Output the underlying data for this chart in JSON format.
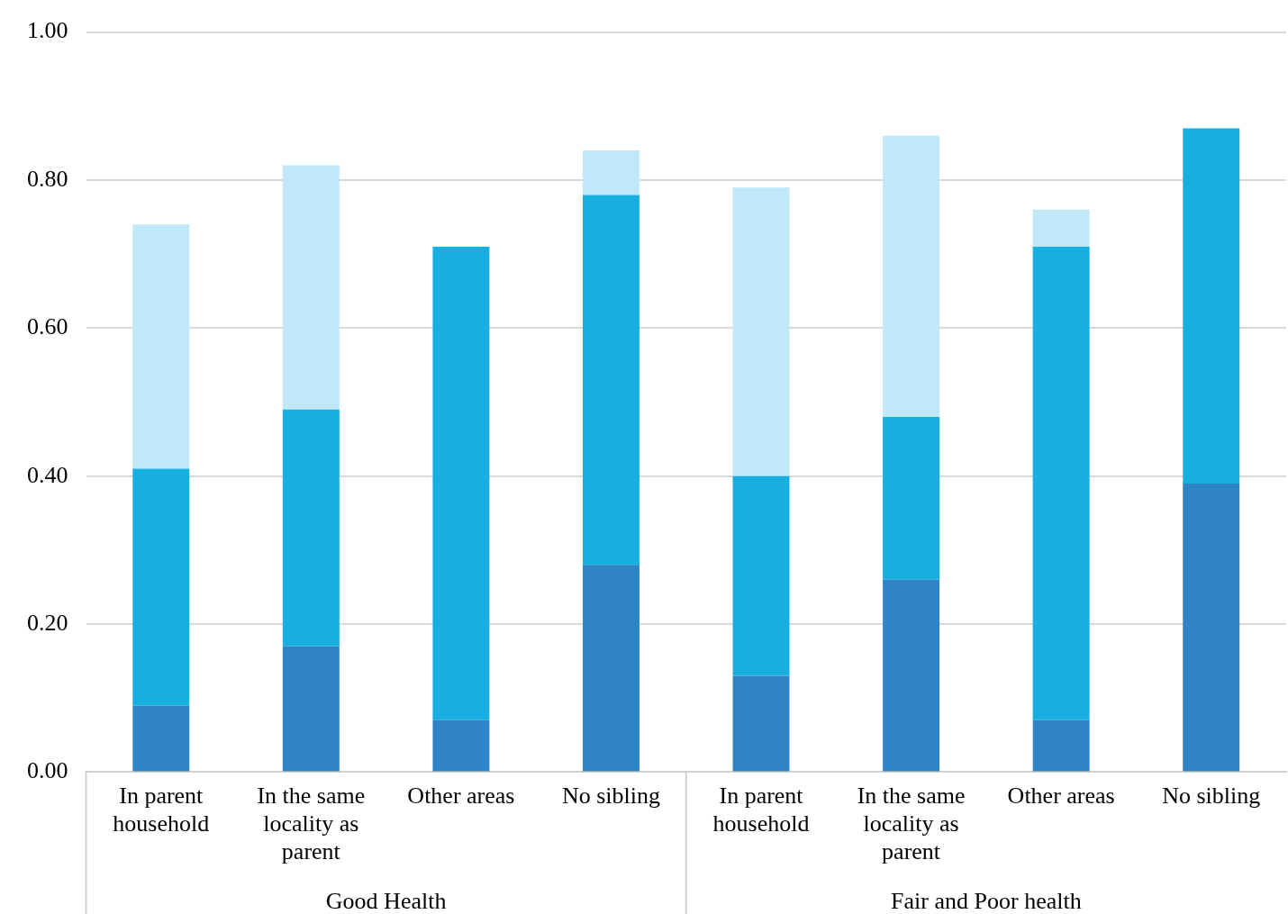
{
  "chart_data": {
    "type": "bar",
    "stacked": true,
    "categories": [
      "In parent household",
      "In the same locality as parent",
      "Other areas",
      "No sibling",
      "In parent household",
      "In the same locality as parent",
      "Other areas",
      "No sibling"
    ],
    "series": [
      {
        "color": "#2e84c4",
        "values": [
          0.09,
          0.17,
          0.07,
          0.28,
          0.13,
          0.26,
          0.07,
          0.39
        ]
      },
      {
        "color": "#17afe0",
        "values": [
          0.32,
          0.32,
          0.64,
          0.5,
          0.27,
          0.22,
          0.64,
          0.48
        ]
      },
      {
        "color": "#c0e8f8",
        "values": [
          0.33,
          0.33,
          0,
          0.06,
          0.39,
          0.38,
          0.05,
          0
        ]
      }
    ],
    "ylim": [
      0,
      1
    ],
    "yticks": [
      {
        "value": 0,
        "label": "0.00"
      },
      {
        "value": 0.2,
        "label": "0.20"
      },
      {
        "value": 0.4,
        "label": "0.40"
      },
      {
        "value": 0.6,
        "label": "0.60"
      },
      {
        "value": 0.8,
        "label": "0.80"
      },
      {
        "value": 1,
        "label": "1.00"
      }
    ],
    "grid": "y",
    "legend": false,
    "annotations": [
      "Good Health",
      "Fair and Poor health"
    ]
  }
}
